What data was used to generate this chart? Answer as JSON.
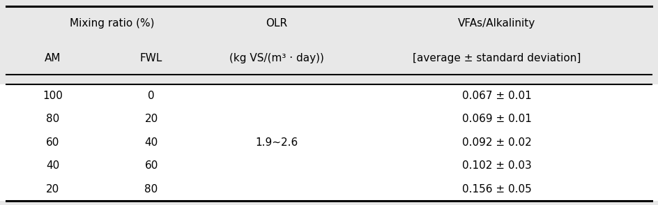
{
  "background_color": "#e8e8e8",
  "data_bg_color": "#ffffff",
  "col_headers_row1": [
    "Mixing ratio (%)",
    "OLR",
    "VFAs/Alkalinity"
  ],
  "col_headers_row2": [
    "AM",
    "FWL",
    "(kg VS/(m³ · day))",
    "[average ± standard deviation]"
  ],
  "rows": [
    [
      "100",
      "0",
      "",
      "0.067 ± 0.01"
    ],
    [
      "80",
      "20",
      "",
      "0.069 ± 0.01"
    ],
    [
      "60",
      "40",
      "1.9~2.6",
      "0.092 ± 0.02"
    ],
    [
      "40",
      "60",
      "",
      "0.102 ± 0.03"
    ],
    [
      "20",
      "80",
      "",
      "0.156 ± 0.05"
    ]
  ],
  "figsize": [
    9.44,
    2.94
  ],
  "dpi": 100,
  "font_size": 11
}
